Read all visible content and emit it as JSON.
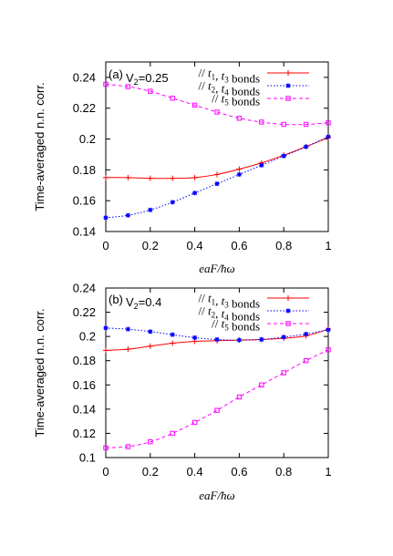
{
  "chart_data": [
    {
      "type": "line",
      "panel_label": "(a)",
      "param_symbol": "V",
      "param_sub": "2",
      "param_value": "=0.25",
      "xlabel": "eaF/ħω",
      "ylabel": "Time-averaged n.n. corr.",
      "xlim": [
        0,
        1
      ],
      "ylim": [
        0.14,
        0.25
      ],
      "xticks": [
        "0",
        "0.2",
        "0.4",
        "0.6",
        "0.8",
        "1"
      ],
      "yticks": [
        "0.14",
        "0.16",
        "0.18",
        "0.2",
        "0.22",
        "0.24"
      ],
      "ytick_values": [
        0.14,
        0.16,
        0.18,
        0.2,
        0.22,
        0.24
      ],
      "legend_position": "top-right",
      "series": [
        {
          "name": "// t1, t3 bonds",
          "color": "#ff0000",
          "marker": "plus",
          "dash": "solid",
          "x": [
            0,
            0.1,
            0.2,
            0.3,
            0.4,
            0.5,
            0.6,
            0.7,
            0.8,
            0.9,
            1.0
          ],
          "y": [
            0.175,
            0.175,
            0.1745,
            0.1745,
            0.175,
            0.177,
            0.1805,
            0.1845,
            0.1895,
            0.195,
            0.201
          ],
          "legend_parts": [
            "// ",
            "t",
            "1",
            ", ",
            "t",
            "3",
            " bonds"
          ]
        },
        {
          "name": "// t2, t4 bonds",
          "color": "#0000ff",
          "marker": "star",
          "dash": "dot",
          "x": [
            0,
            0.1,
            0.2,
            0.3,
            0.4,
            0.5,
            0.6,
            0.7,
            0.8,
            0.9,
            1.0
          ],
          "y": [
            0.149,
            0.1505,
            0.154,
            0.159,
            0.165,
            0.171,
            0.177,
            0.183,
            0.189,
            0.195,
            0.2015
          ],
          "legend_parts": [
            "// ",
            "t",
            "2",
            ", ",
            "t",
            "4",
            " bonds"
          ]
        },
        {
          "name": "// t5 bonds",
          "color": "#ff00ff",
          "marker": "square",
          "dash": "dash",
          "x": [
            0,
            0.1,
            0.2,
            0.3,
            0.4,
            0.5,
            0.6,
            0.7,
            0.8,
            0.9,
            1.0
          ],
          "y": [
            0.2355,
            0.234,
            0.231,
            0.2265,
            0.222,
            0.2175,
            0.2135,
            0.211,
            0.2095,
            0.2095,
            0.2105
          ],
          "legend_parts": [
            "// ",
            "t",
            "5",
            " bonds"
          ]
        }
      ]
    },
    {
      "type": "line",
      "panel_label": "(b)",
      "param_symbol": "V",
      "param_sub": "2",
      "param_value": "=0.4",
      "xlabel": "eaF/ħω",
      "ylabel": "Time-averaged n.n. corr.",
      "xlim": [
        0,
        1
      ],
      "ylim": [
        0.1,
        0.24
      ],
      "xticks": [
        "0",
        "0.2",
        "0.4",
        "0.6",
        "0.8",
        "1"
      ],
      "yticks": [
        "0.1",
        "0.12",
        "0.14",
        "0.16",
        "0.18",
        "0.2",
        "0.22",
        "0.24"
      ],
      "ytick_values": [
        0.1,
        0.12,
        0.14,
        0.16,
        0.18,
        0.2,
        0.22,
        0.24
      ],
      "legend_position": "top-right",
      "series": [
        {
          "name": "// t1, t3 bonds",
          "color": "#ff0000",
          "marker": "plus",
          "dash": "solid",
          "x": [
            0,
            0.1,
            0.2,
            0.3,
            0.4,
            0.5,
            0.6,
            0.7,
            0.8,
            0.9,
            1.0
          ],
          "y": [
            0.1885,
            0.1895,
            0.192,
            0.1945,
            0.196,
            0.1965,
            0.197,
            0.1975,
            0.1985,
            0.2005,
            0.206
          ],
          "legend_parts": [
            "// ",
            "t",
            "1",
            ", ",
            "t",
            "3",
            " bonds"
          ]
        },
        {
          "name": "// t2, t4 bonds",
          "color": "#0000ff",
          "marker": "star",
          "dash": "dot",
          "x": [
            0,
            0.1,
            0.2,
            0.3,
            0.4,
            0.5,
            0.6,
            0.7,
            0.8,
            0.9,
            1.0
          ],
          "y": [
            0.207,
            0.206,
            0.204,
            0.2015,
            0.199,
            0.1975,
            0.197,
            0.1975,
            0.1995,
            0.202,
            0.2055
          ],
          "legend_parts": [
            "// ",
            "t",
            "2",
            ", ",
            "t",
            "4",
            " bonds"
          ]
        },
        {
          "name": "// t5 bonds",
          "color": "#ff00ff",
          "marker": "square",
          "dash": "dash",
          "x": [
            0,
            0.1,
            0.2,
            0.3,
            0.4,
            0.5,
            0.6,
            0.7,
            0.8,
            0.9,
            1.0
          ],
          "y": [
            0.108,
            0.109,
            0.113,
            0.12,
            0.129,
            0.139,
            0.15,
            0.16,
            0.17,
            0.18,
            0.189
          ],
          "legend_parts": [
            "// ",
            "t",
            "5",
            " bonds"
          ]
        }
      ]
    }
  ]
}
